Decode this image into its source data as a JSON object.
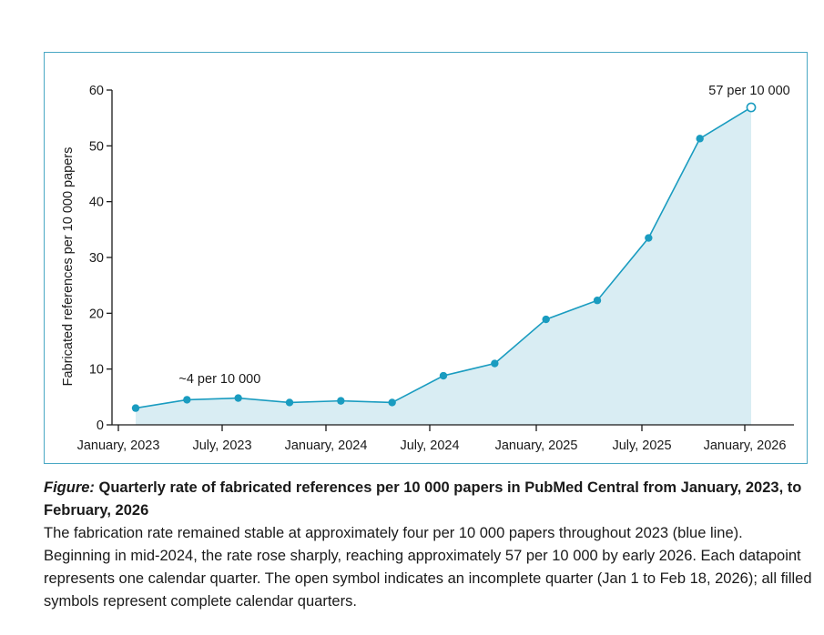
{
  "chart_data": {
    "type": "area",
    "ylabel": "Fabricated references per 10 000 papers",
    "xlabel": "",
    "ylim": [
      0,
      60
    ],
    "yticks": [
      0,
      10,
      20,
      30,
      40,
      50,
      60
    ],
    "xtick_labels": [
      "January, 2023",
      "July, 2023",
      "January, 2024",
      "July, 2024",
      "January, 2025",
      "July, 2025",
      "January, 2026"
    ],
    "series": [
      {
        "x": [
          "2023 Q1",
          "2023 Q2",
          "2023 Q3",
          "2023 Q4",
          "2024 Q1",
          "2024 Q2",
          "2024 Q3",
          "2024 Q4",
          "2025 Q1",
          "2025 Q2",
          "2025 Q3",
          "2025 Q4",
          "2026 Q1"
        ],
        "values": [
          3.0,
          4.5,
          4.8,
          4.0,
          4.3,
          4.0,
          8.8,
          11.0,
          18.9,
          22.3,
          33.5,
          51.3,
          56.9
        ],
        "incomplete_last": true
      }
    ],
    "annotations": [
      {
        "text": "~4 per 10 000",
        "near_point": 1
      },
      {
        "text": "57 per 10 000",
        "near_point": 12
      }
    ],
    "line_color": "#1a9cc0",
    "fill_color": "#d9edf3",
    "grid": false
  },
  "caption": {
    "lead": "Figure:",
    "title": " Quarterly rate of fabricated references per 10 000 papers in PubMed Central from January, 2023, to February, 2026",
    "body": "The fabrication rate remained stable at approximately four per 10 000 papers throughout 2023 (blue line). Beginning in mid-2024, the rate rose sharply, reaching approximately 57 per 10 000 by early 2026. Each datapoint represents one calendar quarter. The open symbol indicates an incomplete quarter (Jan 1 to Feb 18, 2026); all filled symbols represent complete calendar quarters."
  }
}
